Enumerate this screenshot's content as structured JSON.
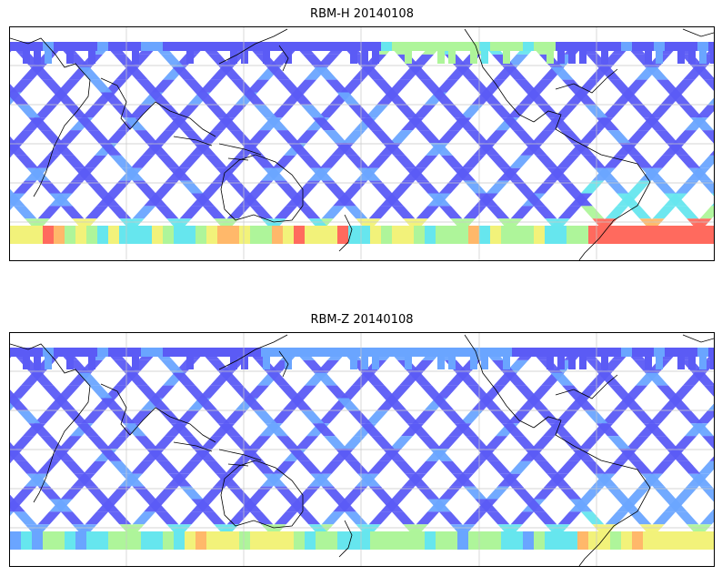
{
  "panels": [
    {
      "title": "RBM-H 20140108",
      "variable": "RBM-H",
      "date": "20140108"
    },
    {
      "title": "RBM-Z 20140108",
      "variable": "RBM-Z",
      "date": "20140108"
    }
  ],
  "colormap": [
    "#5b5bf5",
    "#6aa5ff",
    "#66e6ee",
    "#aef59a",
    "#f2f27a",
    "#ffb86a",
    "#ff6a5e"
  ],
  "coastline_color": "#000000",
  "grid_color": "#c8c8c8"
}
